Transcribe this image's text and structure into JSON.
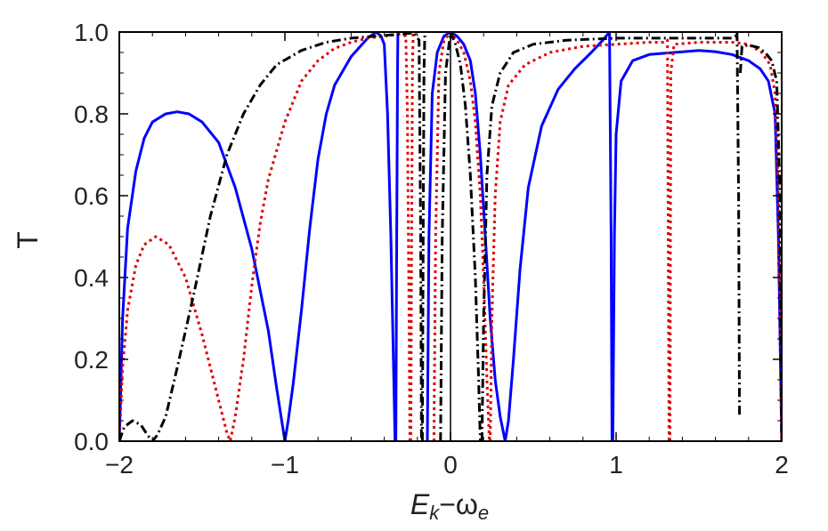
{
  "chart_data": {
    "type": "line",
    "title": "",
    "xlabel": {
      "main": "E",
      "sub1": "k",
      "mid": "−ω",
      "sub2": "e"
    },
    "ylabel": "T",
    "xlim": [
      -2,
      2
    ],
    "ylim": [
      0,
      1
    ],
    "xticks": [
      -2,
      -1,
      0,
      1,
      2
    ],
    "yticks": [
      0.0,
      0.2,
      0.4,
      0.6,
      0.8,
      1.0
    ],
    "xtick_labels": [
      "−2",
      "−1",
      "0",
      "1",
      "2"
    ],
    "ytick_labels": [
      "0.0",
      "0.2",
      "0.4",
      "0.6",
      "0.8",
      "1.0"
    ],
    "grid": false,
    "legend": "none",
    "vertical_line_x": 0,
    "series": [
      {
        "style": "solid",
        "color": "#0000ff",
        "segments": [
          [
            [
              -2.0,
              0.0
            ],
            [
              -1.98,
              0.3
            ],
            [
              -1.95,
              0.52
            ],
            [
              -1.9,
              0.66
            ],
            [
              -1.85,
              0.74
            ],
            [
              -1.8,
              0.78
            ],
            [
              -1.72,
              0.8
            ],
            [
              -1.65,
              0.805
            ],
            [
              -1.58,
              0.8
            ],
            [
              -1.5,
              0.78
            ],
            [
              -1.4,
              0.73
            ],
            [
              -1.3,
              0.62
            ],
            [
              -1.2,
              0.47
            ],
            [
              -1.1,
              0.27
            ],
            [
              -1.05,
              0.13
            ],
            [
              -1.0,
              0.0
            ],
            [
              -0.98,
              0.05
            ],
            [
              -0.95,
              0.14
            ],
            [
              -0.9,
              0.32
            ],
            [
              -0.85,
              0.52
            ],
            [
              -0.8,
              0.69
            ],
            [
              -0.75,
              0.8
            ],
            [
              -0.7,
              0.87
            ],
            [
              -0.6,
              0.94
            ],
            [
              -0.5,
              0.985
            ],
            [
              -0.45,
              1.0
            ],
            [
              -0.42,
              0.99
            ],
            [
              -0.4,
              0.97
            ],
            [
              -0.38,
              0.8
            ],
            [
              -0.36,
              0.5
            ],
            [
              -0.35,
              0.3
            ],
            [
              -0.34,
              0.1
            ],
            [
              -0.335,
              0.0
            ]
          ],
          [
            [
              -0.33,
              0.0
            ],
            [
              -0.325,
              0.5
            ],
            [
              -0.32,
              0.9
            ],
            [
              -0.318,
              1.0
            ]
          ],
          [
            [
              -0.14,
              0.0
            ],
            [
              -0.13,
              0.5
            ],
            [
              -0.11,
              0.85
            ],
            [
              -0.08,
              0.95
            ],
            [
              -0.04,
              0.99
            ],
            [
              0.0,
              1.0
            ],
            [
              0.04,
              0.99
            ],
            [
              0.08,
              0.97
            ],
            [
              0.12,
              0.93
            ],
            [
              0.15,
              0.85
            ],
            [
              0.18,
              0.7
            ],
            [
              0.21,
              0.5
            ],
            [
              0.24,
              0.3
            ],
            [
              0.27,
              0.15
            ],
            [
              0.3,
              0.06
            ],
            [
              0.33,
              0.0
            ],
            [
              0.35,
              0.05
            ],
            [
              0.38,
              0.2
            ],
            [
              0.42,
              0.42
            ],
            [
              0.47,
              0.62
            ],
            [
              0.55,
              0.77
            ],
            [
              0.65,
              0.86
            ],
            [
              0.75,
              0.91
            ],
            [
              0.85,
              0.95
            ],
            [
              0.92,
              0.98
            ],
            [
              0.96,
              1.0
            ],
            [
              0.97,
              0.5
            ],
            [
              0.975,
              0.0
            ]
          ],
          [
            [
              0.98,
              0.0
            ],
            [
              0.99,
              0.5
            ],
            [
              1.0,
              0.75
            ],
            [
              1.03,
              0.88
            ],
            [
              1.1,
              0.93
            ],
            [
              1.2,
              0.945
            ],
            [
              1.35,
              0.95
            ],
            [
              1.5,
              0.955
            ],
            [
              1.6,
              0.952
            ],
            [
              1.7,
              0.945
            ],
            [
              1.8,
              0.93
            ],
            [
              1.87,
              0.91
            ],
            [
              1.92,
              0.88
            ],
            [
              1.96,
              0.8
            ],
            [
              1.98,
              0.5
            ],
            [
              2.0,
              0.0
            ]
          ]
        ]
      },
      {
        "style": "dotted",
        "color": "#e00000",
        "segments": [
          [
            [
              -2.0,
              0.0
            ],
            [
              -1.98,
              0.18
            ],
            [
              -1.95,
              0.32
            ],
            [
              -1.9,
              0.43
            ],
            [
              -1.85,
              0.48
            ],
            [
              -1.78,
              0.5
            ],
            [
              -1.7,
              0.48
            ],
            [
              -1.6,
              0.4
            ],
            [
              -1.5,
              0.26
            ],
            [
              -1.4,
              0.1
            ],
            [
              -1.35,
              0.02
            ],
            [
              -1.33,
              0.0
            ],
            [
              -1.3,
              0.06
            ],
            [
              -1.25,
              0.2
            ],
            [
              -1.2,
              0.38
            ],
            [
              -1.15,
              0.53
            ],
            [
              -1.1,
              0.64
            ],
            [
              -1.0,
              0.78
            ],
            [
              -0.9,
              0.88
            ],
            [
              -0.8,
              0.93
            ],
            [
              -0.7,
              0.96
            ],
            [
              -0.6,
              0.975
            ],
            [
              -0.5,
              0.985
            ],
            [
              -0.4,
              0.99
            ],
            [
              -0.3,
              0.995
            ],
            [
              -0.27,
              0.99
            ],
            [
              -0.26,
              0.8
            ],
            [
              -0.25,
              0.3
            ],
            [
              -0.245,
              0.0
            ]
          ],
          [
            [
              -0.24,
              0.0
            ],
            [
              -0.235,
              0.5
            ],
            [
              -0.23,
              0.9
            ],
            [
              -0.225,
              1.0
            ]
          ],
          [
            [
              -0.1,
              0.0
            ],
            [
              -0.09,
              0.5
            ],
            [
              -0.07,
              0.9
            ],
            [
              -0.04,
              0.98
            ],
            [
              0.0,
              1.0
            ],
            [
              0.04,
              0.98
            ],
            [
              0.08,
              0.95
            ],
            [
              0.12,
              0.88
            ],
            [
              0.15,
              0.78
            ],
            [
              0.18,
              0.6
            ],
            [
              0.2,
              0.4
            ],
            [
              0.22,
              0.15
            ],
            [
              0.235,
              0.0
            ]
          ],
          [
            [
              0.24,
              0.0
            ],
            [
              0.25,
              0.3
            ],
            [
              0.27,
              0.6
            ],
            [
              0.3,
              0.78
            ],
            [
              0.35,
              0.87
            ],
            [
              0.45,
              0.92
            ],
            [
              0.6,
              0.95
            ],
            [
              0.8,
              0.965
            ],
            [
              1.0,
              0.97
            ],
            [
              1.2,
              0.975
            ],
            [
              1.3,
              0.975
            ],
            [
              1.31,
              0.98
            ],
            [
              1.315,
              0.5
            ],
            [
              1.32,
              0.0
            ]
          ],
          [
            [
              1.325,
              0.0
            ],
            [
              1.33,
              0.9
            ],
            [
              1.35,
              0.97
            ],
            [
              1.5,
              0.975
            ],
            [
              1.7,
              0.975
            ],
            [
              1.8,
              0.97
            ],
            [
              1.88,
              0.95
            ],
            [
              1.93,
              0.92
            ],
            [
              1.96,
              0.85
            ],
            [
              1.98,
              0.6
            ],
            [
              2.0,
              0.0
            ]
          ]
        ]
      },
      {
        "style": "dashdot",
        "color": "#000000",
        "segments": [
          [
            [
              -2.0,
              0.0
            ],
            [
              -1.97,
              0.035
            ],
            [
              -1.92,
              0.05
            ],
            [
              -1.87,
              0.04
            ],
            [
              -1.83,
              0.015
            ],
            [
              -1.8,
              0.0
            ],
            [
              -1.77,
              0.015
            ],
            [
              -1.72,
              0.06
            ],
            [
              -1.65,
              0.18
            ],
            [
              -1.55,
              0.36
            ],
            [
              -1.45,
              0.55
            ],
            [
              -1.35,
              0.7
            ],
            [
              -1.25,
              0.8
            ],
            [
              -1.15,
              0.87
            ],
            [
              -1.05,
              0.92
            ],
            [
              -0.9,
              0.955
            ],
            [
              -0.75,
              0.975
            ],
            [
              -0.6,
              0.985
            ],
            [
              -0.45,
              0.99
            ],
            [
              -0.3,
              0.995
            ],
            [
              -0.22,
              0.998
            ],
            [
              -0.19,
              0.98
            ],
            [
              -0.18,
              0.5
            ],
            [
              -0.175,
              0.0
            ]
          ],
          [
            [
              -0.17,
              0.0
            ],
            [
              -0.165,
              0.5
            ],
            [
              -0.16,
              0.9
            ],
            [
              -0.155,
              1.0
            ]
          ],
          [
            [
              -0.06,
              0.0
            ],
            [
              -0.05,
              0.5
            ],
            [
              -0.03,
              0.9
            ],
            [
              0.0,
              1.0
            ],
            [
              0.03,
              0.97
            ],
            [
              0.06,
              0.92
            ],
            [
              0.09,
              0.82
            ],
            [
              0.12,
              0.65
            ],
            [
              0.15,
              0.4
            ],
            [
              0.17,
              0.15
            ],
            [
              0.18,
              0.0
            ]
          ],
          [
            [
              0.19,
              0.0
            ],
            [
              0.2,
              0.3
            ],
            [
              0.22,
              0.65
            ],
            [
              0.25,
              0.82
            ],
            [
              0.3,
              0.9
            ],
            [
              0.38,
              0.95
            ],
            [
              0.5,
              0.97
            ],
            [
              0.7,
              0.98
            ],
            [
              1.0,
              0.985
            ],
            [
              1.3,
              0.985
            ],
            [
              1.6,
              0.985
            ],
            [
              1.7,
              0.985
            ],
            [
              1.72,
              0.99
            ],
            [
              1.73,
              1.0
            ],
            [
              1.74,
              0.6
            ],
            [
              1.745,
              0.06
            ]
          ],
          [
            [
              1.75,
              0.9
            ],
            [
              1.76,
              0.965
            ],
            [
              1.8,
              0.968
            ],
            [
              1.86,
              0.962
            ],
            [
              1.9,
              0.95
            ],
            [
              1.94,
              0.93
            ],
            [
              1.97,
              0.88
            ],
            [
              1.99,
              0.6
            ],
            [
              2.0,
              0.0
            ]
          ]
        ]
      }
    ]
  }
}
